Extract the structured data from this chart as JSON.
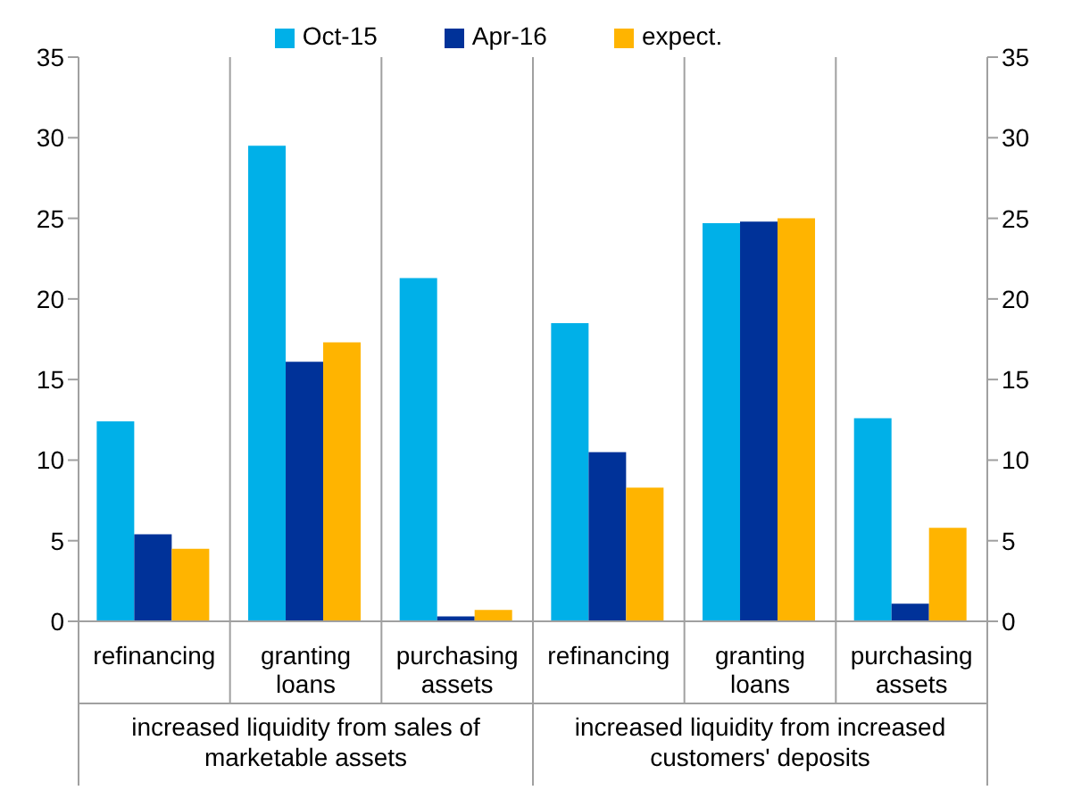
{
  "chart_data": {
    "type": "bar",
    "categories": [
      "refinancing",
      "granting loans",
      "purchasing assets",
      "refinancing",
      "granting loans",
      "purchasing assets"
    ],
    "series": [
      {
        "name": "Oct-15",
        "color": "#00b0e8",
        "values": [
          12.4,
          29.5,
          21.3,
          18.5,
          24.7,
          12.6
        ]
      },
      {
        "name": "Apr-16",
        "color": "#003299",
        "values": [
          5.4,
          16.1,
          0.3,
          10.5,
          24.8,
          1.1
        ]
      },
      {
        "name": "expect.",
        "color": "#ffb400",
        "values": [
          4.5,
          17.3,
          0.7,
          8.3,
          25.0,
          5.8
        ]
      }
    ],
    "ylim": [
      0,
      35
    ],
    "yticks": [
      0,
      5,
      10,
      15,
      20,
      25,
      30,
      35
    ],
    "y2lim": [
      0,
      35
    ],
    "y2ticks": [
      0,
      5,
      10,
      15,
      20,
      25,
      30,
      35
    ],
    "annotations": [
      "increased liquidity from sales of marketable assets",
      "increased liquidity from increased customers' deposits"
    ],
    "grid": false,
    "legend": "top"
  }
}
